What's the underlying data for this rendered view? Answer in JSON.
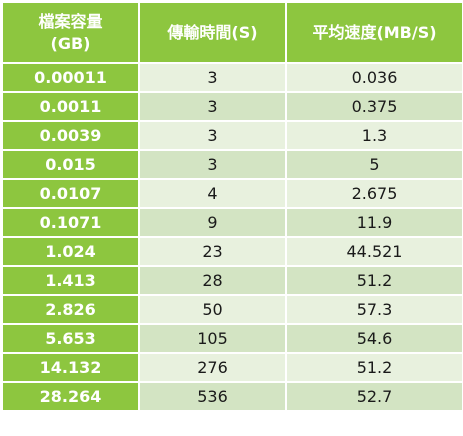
{
  "table": {
    "headers": {
      "size_line1": "檔案容量",
      "size_line2": "(GB)",
      "time": "傳輸時間(S)",
      "speed": "平均速度(MB/S)"
    },
    "rows": [
      {
        "size": "0.00011",
        "time": "3",
        "speed": "0.036"
      },
      {
        "size": "0.0011",
        "time": "3",
        "speed": "0.375"
      },
      {
        "size": "0.0039",
        "time": "3",
        "speed": "1.3"
      },
      {
        "size": "0.015",
        "time": "3",
        "speed": "5"
      },
      {
        "size": "0.0107",
        "time": "4",
        "speed": "2.675"
      },
      {
        "size": "0.1071",
        "time": "9",
        "speed": "11.9"
      },
      {
        "size": "1.024",
        "time": "23",
        "speed": "44.521"
      },
      {
        "size": "1.413",
        "time": "28",
        "speed": "51.2"
      },
      {
        "size": "2.826",
        "time": "50",
        "speed": "57.3"
      },
      {
        "size": "5.653",
        "time": "105",
        "speed": "54.6"
      },
      {
        "size": "14.132",
        "time": "276",
        "speed": "51.2"
      },
      {
        "size": "28.264",
        "time": "536",
        "speed": "52.7"
      }
    ]
  },
  "colors": {
    "header_green": "#8dc63f",
    "row_light": "#e8f1de",
    "row_dark": "#d3e4c3",
    "header_text": "#ffffff"
  }
}
